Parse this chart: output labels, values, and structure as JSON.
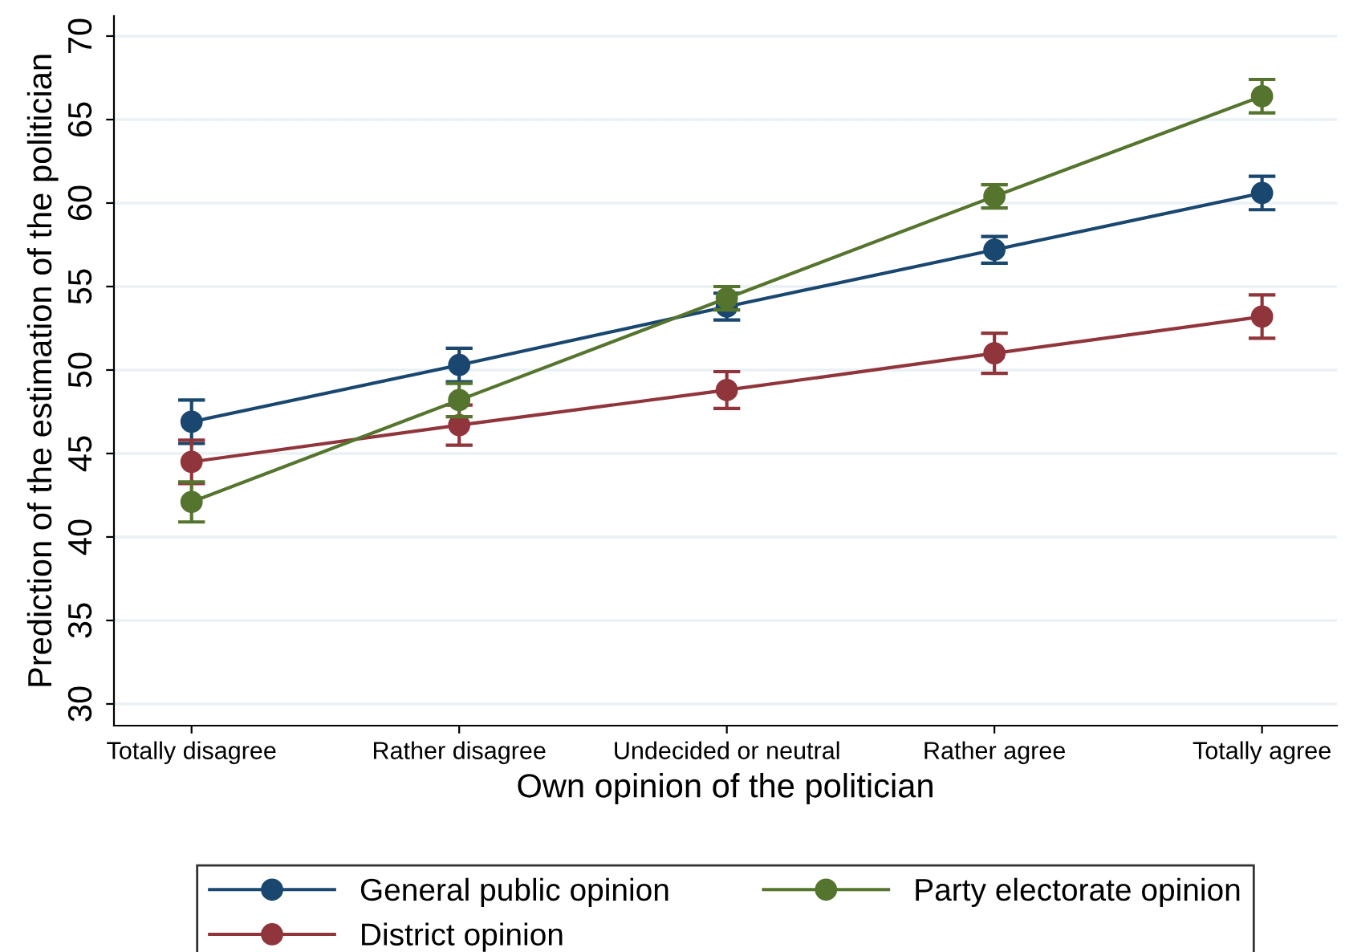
{
  "chart_data": {
    "type": "line",
    "xlabel": "Own opinion of the politician",
    "ylabel": "Prediction of the estimation of the politician",
    "categories": [
      "Totally disagree",
      "Rather disagree",
      "Undecided or neutral",
      "Rather agree",
      "Totally agree"
    ],
    "series": [
      {
        "name": "General public opinion",
        "color": "#1a476f",
        "values": [
          46.9,
          50.3,
          53.8,
          57.2,
          60.6
        ],
        "errors": [
          1.3,
          1.0,
          0.8,
          0.8,
          1.0
        ]
      },
      {
        "name": "District opinion",
        "color": "#90353b",
        "values": [
          44.5,
          46.7,
          48.8,
          51.0,
          53.2
        ],
        "errors": [
          1.3,
          1.2,
          1.1,
          1.2,
          1.3
        ]
      },
      {
        "name": "Party electorate opinion",
        "color": "#55752f",
        "values": [
          42.1,
          48.2,
          54.3,
          60.4,
          66.4
        ],
        "errors": [
          1.2,
          1.0,
          0.7,
          0.7,
          1.0
        ]
      }
    ],
    "ylim": [
      28.7,
      71.2
    ],
    "yticks": [
      30,
      35,
      40,
      45,
      50,
      55,
      60,
      65,
      70
    ],
    "grid": "y",
    "legend": "bottom",
    "marker": "circle",
    "line_style": "solid"
  }
}
